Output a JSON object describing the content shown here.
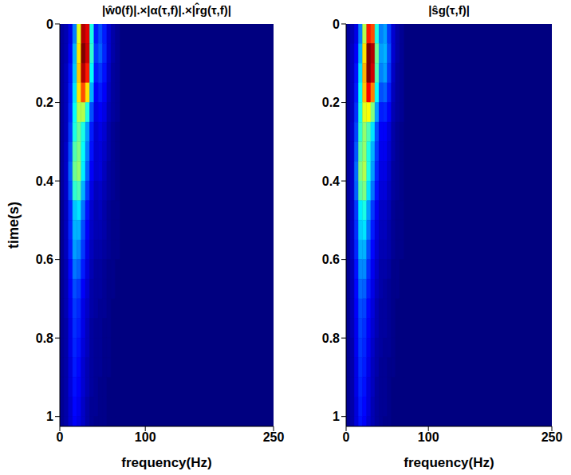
{
  "chart_data": [
    {
      "type": "heatmap",
      "title": "|ŵ0(f)|.×|α(τ,f)|.×|r̂g(τ,f)|",
      "xlabel": "frequency(Hz)",
      "ylabel": "time(s)",
      "xlim": [
        0,
        250
      ],
      "xticks": [
        0,
        100,
        250
      ],
      "ylim": [
        0,
        1.025
      ],
      "yticks": [
        0,
        0.2,
        0.4,
        0.6,
        0.8,
        1
      ],
      "color_range": [
        0,
        100
      ],
      "x_bins": [
        0,
        5,
        10,
        15,
        20,
        25,
        30,
        35,
        40,
        45,
        50,
        55,
        60,
        65,
        70
      ],
      "y_bins": [
        0,
        0.05,
        0.1,
        0.15,
        0.2,
        0.25,
        0.3,
        0.35,
        0.4,
        0.45,
        0.5,
        0.55,
        0.6,
        0.65,
        0.7,
        0.75,
        0.8,
        0.85,
        0.9,
        0.95,
        1,
        1.025
      ],
      "cells": [
        [
          3,
          5,
          10,
          25,
          60,
          95,
          90,
          40,
          15,
          20,
          15,
          8,
          4,
          2
        ],
        [
          3,
          5,
          12,
          30,
          65,
          100,
          92,
          42,
          18,
          22,
          16,
          8,
          4,
          2
        ],
        [
          3,
          6,
          14,
          32,
          68,
          95,
          85,
          38,
          15,
          18,
          14,
          7,
          3,
          2
        ],
        [
          3,
          6,
          15,
          35,
          65,
          80,
          65,
          30,
          12,
          15,
          12,
          6,
          3,
          2
        ],
        [
          3,
          6,
          16,
          38,
          55,
          55,
          40,
          20,
          10,
          12,
          10,
          5,
          3,
          2
        ],
        [
          3,
          6,
          18,
          40,
          48,
          40,
          28,
          15,
          8,
          10,
          8,
          4,
          2,
          1
        ],
        [
          3,
          7,
          20,
          45,
          50,
          38,
          25,
          14,
          8,
          9,
          7,
          4,
          2,
          1
        ],
        [
          3,
          7,
          22,
          48,
          52,
          36,
          22,
          12,
          8,
          9,
          6,
          3,
          2,
          1
        ],
        [
          3,
          7,
          20,
          42,
          45,
          30,
          18,
          10,
          6,
          7,
          5,
          3,
          2,
          1
        ],
        [
          2,
          6,
          16,
          32,
          35,
          24,
          14,
          8,
          5,
          6,
          4,
          2,
          1,
          1
        ],
        [
          2,
          6,
          16,
          30,
          30,
          20,
          12,
          7,
          5,
          5,
          4,
          2,
          1,
          1
        ],
        [
          2,
          6,
          15,
          28,
          26,
          18,
          10,
          6,
          4,
          4,
          3,
          2,
          1,
          1
        ],
        [
          2,
          5,
          13,
          24,
          22,
          15,
          9,
          5,
          3,
          3,
          2,
          1,
          1,
          0
        ],
        [
          2,
          5,
          12,
          20,
          18,
          12,
          8,
          4,
          3,
          3,
          2,
          1,
          1,
          0
        ],
        [
          2,
          5,
          11,
          18,
          16,
          10,
          7,
          4,
          3,
          2,
          2,
          1,
          0,
          0
        ],
        [
          2,
          4,
          10,
          17,
          15,
          10,
          6,
          3,
          2,
          2,
          1,
          1,
          0,
          0
        ],
        [
          2,
          4,
          10,
          16,
          14,
          9,
          6,
          3,
          2,
          2,
          1,
          1,
          0,
          0
        ],
        [
          2,
          4,
          9,
          15,
          13,
          8,
          5,
          3,
          2,
          2,
          1,
          1,
          0,
          0
        ],
        [
          2,
          4,
          9,
          14,
          12,
          8,
          5,
          3,
          2,
          1,
          1,
          0,
          0,
          0
        ],
        [
          2,
          4,
          8,
          13,
          11,
          7,
          4,
          2,
          2,
          1,
          1,
          0,
          0,
          0
        ],
        [
          2,
          4,
          8,
          12,
          10,
          7,
          4,
          2,
          1,
          1,
          1,
          0,
          0,
          0
        ]
      ]
    },
    {
      "type": "heatmap",
      "title": "|ŝg(τ,f)|",
      "xlabel": "frequency(Hz)",
      "xlim": [
        0,
        250
      ],
      "xticks": [
        0,
        100,
        250
      ],
      "ylim": [
        0,
        1.025
      ],
      "yticks": [
        0,
        0.2,
        0.4,
        0.6,
        0.8,
        1
      ],
      "color_range": [
        0,
        100
      ],
      "x_bins": [
        0,
        5,
        10,
        15,
        20,
        25,
        30,
        35,
        40,
        45,
        50,
        55,
        60,
        65,
        70
      ],
      "y_bins": [
        0,
        0.05,
        0.1,
        0.15,
        0.2,
        0.25,
        0.3,
        0.35,
        0.4,
        0.45,
        0.5,
        0.55,
        0.6,
        0.65,
        0.7,
        0.75,
        0.8,
        0.85,
        0.9,
        0.95,
        1,
        1.025
      ],
      "cells": [
        [
          3,
          5,
          10,
          25,
          55,
          85,
          80,
          40,
          25,
          28,
          18,
          8,
          4,
          2
        ],
        [
          3,
          6,
          12,
          30,
          65,
          100,
          95,
          48,
          28,
          30,
          20,
          8,
          4,
          2
        ],
        [
          3,
          6,
          14,
          35,
          70,
          100,
          92,
          45,
          25,
          28,
          18,
          7,
          3,
          2
        ],
        [
          3,
          6,
          15,
          38,
          68,
          88,
          75,
          38,
          20,
          22,
          15,
          6,
          3,
          2
        ],
        [
          3,
          6,
          17,
          40,
          60,
          62,
          50,
          28,
          15,
          16,
          12,
          5,
          3,
          2
        ],
        [
          3,
          7,
          19,
          42,
          52,
          45,
          35,
          20,
          12,
          12,
          9,
          4,
          2,
          1
        ],
        [
          3,
          7,
          21,
          46,
          52,
          40,
          30,
          18,
          11,
          11,
          8,
          4,
          2,
          1
        ],
        [
          3,
          7,
          23,
          50,
          55,
          40,
          28,
          16,
          10,
          10,
          7,
          3,
          2,
          1
        ],
        [
          3,
          7,
          22,
          46,
          50,
          35,
          24,
          14,
          9,
          9,
          6,
          3,
          2,
          1
        ],
        [
          2,
          6,
          18,
          36,
          40,
          28,
          18,
          11,
          7,
          7,
          5,
          2,
          1,
          1
        ],
        [
          2,
          6,
          17,
          33,
          35,
          24,
          15,
          9,
          6,
          6,
          4,
          2,
          1,
          1
        ],
        [
          2,
          6,
          16,
          30,
          30,
          20,
          13,
          8,
          5,
          5,
          4,
          2,
          1,
          1
        ],
        [
          2,
          5,
          14,
          26,
          26,
          17,
          11,
          7,
          4,
          4,
          3,
          1,
          1,
          0
        ],
        [
          2,
          5,
          13,
          23,
          22,
          15,
          10,
          6,
          4,
          3,
          2,
          1,
          1,
          0
        ],
        [
          2,
          5,
          12,
          20,
          19,
          13,
          9,
          5,
          3,
          3,
          2,
          1,
          0,
          0
        ],
        [
          2,
          5,
          11,
          19,
          17,
          12,
          8,
          5,
          3,
          3,
          2,
          1,
          0,
          0
        ],
        [
          2,
          4,
          11,
          18,
          16,
          11,
          7,
          4,
          3,
          2,
          2,
          1,
          0,
          0
        ],
        [
          2,
          4,
          10,
          17,
          15,
          10,
          6,
          4,
          2,
          2,
          1,
          1,
          0,
          0
        ],
        [
          2,
          4,
          10,
          16,
          14,
          9,
          6,
          3,
          2,
          2,
          1,
          0,
          0,
          0
        ],
        [
          2,
          4,
          9,
          15,
          13,
          9,
          5,
          3,
          2,
          2,
          1,
          0,
          0,
          0
        ],
        [
          2,
          4,
          9,
          14,
          12,
          8,
          5,
          3,
          2,
          1,
          1,
          0,
          0,
          0
        ]
      ]
    }
  ]
}
